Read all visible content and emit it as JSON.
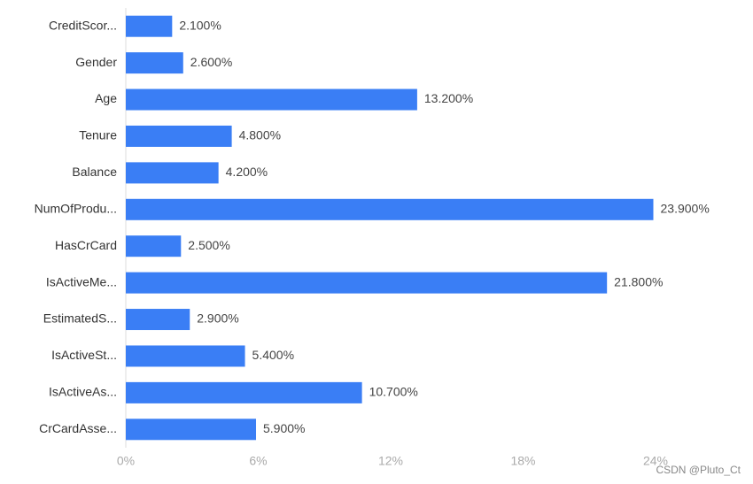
{
  "chart_data": {
    "type": "bar",
    "orientation": "horizontal",
    "categories": [
      "CreditScor...",
      "Gender",
      "Age",
      "Tenure",
      "Balance",
      "NumOfProdu...",
      "HasCrCard",
      "IsActiveMe...",
      "EstimatedS...",
      "IsActiveSt...",
      "IsActiveAs...",
      "CrCardAsse..."
    ],
    "values": [
      2.1,
      2.6,
      13.2,
      4.8,
      4.2,
      23.9,
      2.5,
      21.8,
      2.9,
      5.4,
      10.7,
      5.9
    ],
    "value_labels": [
      "2.100%",
      "2.600%",
      "13.200%",
      "4.800%",
      "4.200%",
      "23.900%",
      "2.500%",
      "21.800%",
      "2.900%",
      "5.400%",
      "10.700%",
      "5.900%"
    ],
    "color": "#3a7ef5",
    "xlim": [
      0,
      24
    ],
    "xticks": [
      {
        "value": 0,
        "label": "0%"
      },
      {
        "value": 6,
        "label": "6%"
      },
      {
        "value": 12,
        "label": "12%"
      },
      {
        "value": 18,
        "label": "18%"
      },
      {
        "value": 24,
        "label": "24%"
      }
    ],
    "watermark": "CSDN @Pluto_Ct"
  }
}
